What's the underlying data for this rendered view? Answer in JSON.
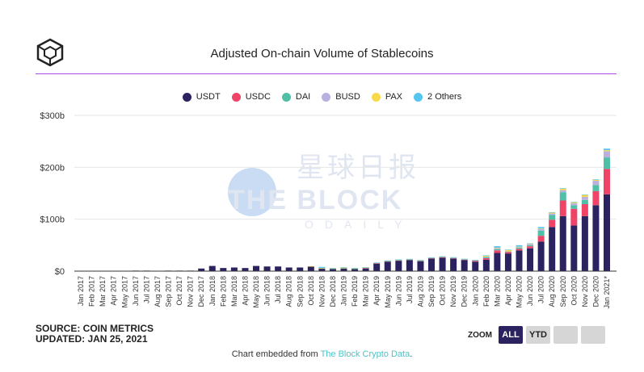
{
  "title": "Adjusted On-chain Volume of Stablecoins",
  "watermark": {
    "line1": "星球日报",
    "line2": "THE BLOCK",
    "line3": "ODAILY"
  },
  "source": "SOURCE: COIN METRICS",
  "updated": "UPDATED: JAN 25, 2021",
  "zoom": {
    "label": "ZOOM",
    "buttons": [
      "ALL",
      "YTD"
    ],
    "active": "ALL"
  },
  "footer": {
    "prefix": "Chart embedded from ",
    "link": "The Block Crypto Data",
    "suffix": "."
  },
  "chart_data": {
    "type": "bar",
    "stacked": true,
    "title": "Adjusted On-chain Volume of Stablecoins",
    "xlabel": "",
    "ylabel": "",
    "ylim": [
      0,
      300
    ],
    "yticks": [
      0,
      100,
      200,
      300
    ],
    "ytick_labels": [
      "$0",
      "$100b",
      "$200b",
      "$300b"
    ],
    "grid": true,
    "legend_position": "top-center",
    "categories": [
      "Jan 2017",
      "Feb 2017",
      "Mar 2017",
      "Apr 2017",
      "May 2017",
      "Jun 2017",
      "Jul 2017",
      "Aug 2017",
      "Sep 2017",
      "Oct 2017",
      "Nov 2017",
      "Dec 2017",
      "Jan 2018",
      "Feb 2018",
      "Mar 2018",
      "Apr 2018",
      "May 2018",
      "Jun 2018",
      "Jul 2018",
      "Aug 2018",
      "Sep 2018",
      "Oct 2018",
      "Nov 2018",
      "Dec 2018",
      "Jan 2019",
      "Feb 2019",
      "Mar 2019",
      "Apr 2019",
      "May 2019",
      "Jun 2019",
      "Jul 2019",
      "Aug 2019",
      "Sep 2019",
      "Oct 2019",
      "Nov 2019",
      "Dec 2019",
      "Jan 2020",
      "Feb 2020",
      "Mar 2020",
      "Apr 2020",
      "May 2020",
      "Jun 2020",
      "Jul 2020",
      "Aug 2020",
      "Sep 2020",
      "Oct 2020",
      "Nov 2020",
      "Dec 2020",
      "Jan 2021*"
    ],
    "series": [
      {
        "name": "USDT",
        "color": "#2b2360",
        "values": [
          0,
          0,
          0,
          0.3,
          0.5,
          1,
          1,
          0.5,
          1,
          1,
          1,
          5,
          10,
          6,
          7,
          6,
          10,
          9,
          9,
          7,
          7,
          9,
          5,
          4,
          5,
          4,
          5,
          14,
          18,
          20,
          21,
          19,
          24,
          26,
          24,
          21,
          18,
          22,
          35,
          34,
          40,
          44,
          57,
          85,
          106,
          88,
          106,
          127,
          148
        ]
      },
      {
        "name": "USDC",
        "color": "#ef4467",
        "values": [
          0,
          0,
          0,
          0,
          0,
          0,
          0,
          0,
          0,
          0,
          0,
          0,
          0,
          0,
          0,
          0,
          0,
          0,
          0,
          0,
          0,
          0,
          0.3,
          0.5,
          0.5,
          0.5,
          1.5,
          1.5,
          1,
          1,
          1,
          1,
          1,
          1,
          1,
          1,
          2,
          3,
          5,
          3,
          3,
          4,
          11,
          14,
          30,
          32,
          23,
          27,
          49
        ]
      },
      {
        "name": "DAI",
        "color": "#4fbfa8",
        "values": [
          0,
          0,
          0,
          0,
          0,
          0,
          0,
          0,
          0,
          0,
          0,
          0,
          0,
          0,
          0,
          0,
          0,
          0,
          0,
          0,
          0,
          0,
          0.3,
          0.3,
          0.3,
          0.3,
          0.3,
          0.3,
          0.3,
          0.3,
          0.3,
          0.3,
          0.5,
          0.5,
          0.5,
          0.5,
          0.5,
          2,
          2,
          0.5,
          2,
          2,
          10,
          9,
          16,
          7,
          8,
          12,
          22
        ]
      },
      {
        "name": "BUSD",
        "color": "#b9b0e0",
        "values": [
          0,
          0,
          0,
          0,
          0,
          0,
          0,
          0,
          0,
          0,
          0,
          0,
          0,
          0,
          0,
          0,
          0,
          0,
          0,
          0,
          0,
          0,
          0,
          0,
          0,
          0,
          0,
          0,
          0,
          0,
          0,
          0,
          0.3,
          0.3,
          0.5,
          0.5,
          0.5,
          1,
          2,
          0.5,
          1,
          2,
          3,
          3,
          4,
          4,
          6,
          8,
          12
        ]
      },
      {
        "name": "PAX",
        "color": "#f9d94c",
        "values": [
          0,
          0,
          0,
          0,
          0,
          0,
          0,
          0,
          0,
          0,
          0,
          0,
          0,
          0,
          0,
          0,
          0,
          0,
          0,
          0,
          0,
          0.5,
          0.5,
          1,
          1.5,
          1,
          0.5,
          0.5,
          1,
          1,
          1,
          1,
          0.5,
          0.5,
          0.5,
          0.5,
          0.5,
          2,
          1,
          3,
          1,
          1,
          1,
          2,
          3,
          2,
          4,
          2,
          2
        ]
      },
      {
        "name": "2 Others",
        "color": "#55c6ee",
        "values": [
          0,
          0,
          0,
          0,
          0,
          0,
          0,
          0,
          0,
          0,
          0,
          0,
          0,
          0,
          0,
          0,
          0,
          0,
          0,
          0,
          0,
          0,
          2,
          0.5,
          0.3,
          0.3,
          0.3,
          0.3,
          0.3,
          0.3,
          0.3,
          0.3,
          0.3,
          0.3,
          0.3,
          0.3,
          0.3,
          0.5,
          3,
          0.5,
          3,
          0.5,
          3,
          0.5,
          1,
          0.5,
          0.5,
          1,
          3
        ]
      }
    ]
  }
}
